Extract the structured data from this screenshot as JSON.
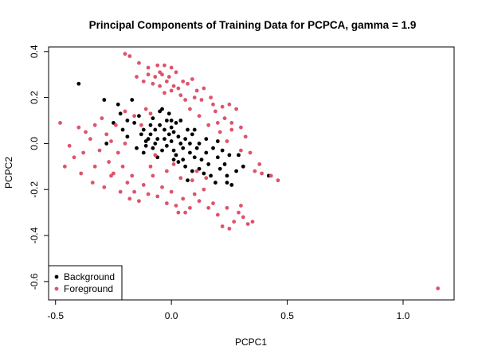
{
  "chart_data": {
    "type": "scatter",
    "title": "Principal Components of Training Data for PCPCA, gamma = 1.9",
    "xlabel": "PCPC1",
    "ylabel": "PCPC2",
    "xlim": [
      -0.53,
      1.22
    ],
    "ylim": [
      -0.68,
      0.42
    ],
    "xticks": [
      -0.5,
      0.0,
      0.5,
      1.0
    ],
    "xtick_labels": [
      "-0.5",
      "0.0",
      "0.5",
      "1.0"
    ],
    "yticks": [
      -0.6,
      -0.4,
      -0.2,
      0.0,
      0.2,
      0.4
    ],
    "ytick_labels": [
      "-0.6",
      "-0.4",
      "-0.2",
      "0.0",
      "0.2",
      "0.4"
    ],
    "grid": false,
    "legend": {
      "position": "bottom-left"
    },
    "series": [
      {
        "name": "Background",
        "color": "#000000",
        "points": [
          [
            -0.4,
            0.26
          ],
          [
            -0.29,
            0.19
          ],
          [
            -0.23,
            0.17
          ],
          [
            -0.22,
            0.13
          ],
          [
            -0.19,
            0.1
          ],
          [
            -0.17,
            0.19
          ],
          [
            -0.16,
            0.09
          ],
          [
            -0.14,
            0.12
          ],
          [
            -0.13,
            0.04
          ],
          [
            -0.12,
            0.06
          ],
          [
            -0.11,
            0.01
          ],
          [
            -0.11,
            -0.01
          ],
          [
            -0.1,
            0.02
          ],
          [
            -0.09,
            0.08
          ],
          [
            -0.09,
            0.04
          ],
          [
            -0.08,
            0.11
          ],
          [
            -0.08,
            -0.02
          ],
          [
            -0.07,
            0.0
          ],
          [
            -0.07,
            0.06
          ],
          [
            -0.06,
            0.02
          ],
          [
            -0.05,
            0.14
          ],
          [
            -0.05,
            0.08
          ],
          [
            -0.04,
            -0.03
          ],
          [
            -0.03,
            0.02
          ],
          [
            -0.03,
            0.06
          ],
          [
            -0.02,
            0.1
          ],
          [
            -0.02,
            -0.01
          ],
          [
            -0.01,
            0.04
          ],
          [
            -0.01,
            0.13
          ],
          [
            0.0,
            0.07
          ],
          [
            0.0,
            0.01
          ],
          [
            0.01,
            -0.03
          ],
          [
            0.01,
            0.05
          ],
          [
            0.02,
            -0.05
          ],
          [
            0.02,
            0.09
          ],
          [
            0.03,
            0.03
          ],
          [
            0.03,
            -0.08
          ],
          [
            0.04,
            0.1
          ],
          [
            0.04,
            0.0
          ],
          [
            0.05,
            -0.02
          ],
          [
            0.05,
            -0.07
          ],
          [
            0.06,
            0.02
          ],
          [
            0.06,
            -0.1
          ],
          [
            0.07,
            0.06
          ],
          [
            0.08,
            -0.04
          ],
          [
            0.09,
            0.04
          ],
          [
            0.09,
            -0.12
          ],
          [
            0.1,
            0.06
          ],
          [
            0.1,
            -0.06
          ],
          [
            0.11,
            -0.02
          ],
          [
            0.12,
            -0.11
          ],
          [
            0.13,
            -0.07
          ],
          [
            0.14,
            -0.13
          ],
          [
            0.15,
            -0.04
          ],
          [
            0.16,
            -0.09
          ],
          [
            0.17,
            -0.14
          ],
          [
            0.18,
            -0.02
          ],
          [
            0.19,
            -0.17
          ],
          [
            0.2,
            -0.06
          ],
          [
            0.21,
            -0.11
          ],
          [
            0.22,
            -0.03
          ],
          [
            0.23,
            -0.09
          ],
          [
            0.24,
            -0.14
          ],
          [
            0.25,
            -0.05
          ],
          [
            -0.28,
            0.0
          ],
          [
            -0.25,
            0.09
          ],
          [
            -0.21,
            0.06
          ],
          [
            -0.15,
            -0.02
          ],
          [
            -0.12,
            -0.04
          ],
          [
            -0.06,
            -0.06
          ],
          [
            -0.04,
            0.15
          ],
          [
            0.01,
            -0.07
          ],
          [
            0.07,
            -0.16
          ],
          [
            0.12,
            0.0
          ],
          [
            0.26,
            -0.18
          ],
          [
            0.29,
            -0.05
          ],
          [
            0.31,
            -0.1
          ],
          [
            0.42,
            -0.14
          ],
          [
            0.0,
            0.1
          ],
          [
            -0.19,
            0.03
          ],
          [
            0.15,
            0.02
          ],
          [
            0.2,
            0.01
          ],
          [
            0.28,
            -0.12
          ],
          [
            0.24,
            -0.17
          ],
          [
            0.08,
            0.0
          ]
        ]
      },
      {
        "name": "Foreground",
        "color": "#DF536B",
        "points": [
          [
            -0.2,
            0.39
          ],
          [
            -0.18,
            0.38
          ],
          [
            -0.14,
            0.35
          ],
          [
            -0.1,
            0.33
          ],
          [
            -0.06,
            0.34
          ],
          [
            -0.04,
            0.3
          ],
          [
            -0.03,
            0.34
          ],
          [
            -0.01,
            0.29
          ],
          [
            0.0,
            0.33
          ],
          [
            0.02,
            0.31
          ],
          [
            -0.15,
            0.29
          ],
          [
            -0.12,
            0.27
          ],
          [
            -0.08,
            0.26
          ],
          [
            -0.05,
            0.25
          ],
          [
            -0.03,
            0.22
          ],
          [
            0.0,
            0.23
          ],
          [
            0.03,
            0.24
          ],
          [
            0.05,
            0.27
          ],
          [
            0.07,
            0.26
          ],
          [
            0.09,
            0.28
          ],
          [
            0.04,
            0.21
          ],
          [
            0.06,
            0.19
          ],
          [
            0.1,
            0.2
          ],
          [
            0.13,
            0.19
          ],
          [
            0.18,
            0.17
          ],
          [
            0.19,
            0.14
          ],
          [
            0.23,
            0.11
          ],
          [
            0.26,
            0.09
          ],
          [
            0.3,
            0.07
          ],
          [
            0.32,
            0.03
          ],
          [
            0.26,
            0.06
          ],
          [
            0.21,
            0.05
          ],
          [
            0.24,
            0.01
          ],
          [
            0.3,
            -0.03
          ],
          [
            0.34,
            -0.04
          ],
          [
            0.38,
            -0.09
          ],
          [
            0.39,
            -0.13
          ],
          [
            0.43,
            -0.14
          ],
          [
            0.46,
            -0.16
          ],
          [
            0.36,
            -0.12
          ],
          [
            -0.48,
            0.09
          ],
          [
            -0.4,
            0.07
          ],
          [
            -0.37,
            0.05
          ],
          [
            -0.35,
            0.02
          ],
          [
            -0.38,
            -0.04
          ],
          [
            -0.42,
            -0.06
          ],
          [
            -0.39,
            -0.13
          ],
          [
            -0.33,
            -0.1
          ],
          [
            -0.31,
            -0.03
          ],
          [
            -0.28,
            0.04
          ],
          [
            -0.27,
            -0.08
          ],
          [
            -0.25,
            -0.13
          ],
          [
            -0.23,
            -0.04
          ],
          [
            -0.21,
            -0.1
          ],
          [
            -0.19,
            -0.17
          ],
          [
            -0.17,
            -0.14
          ],
          [
            -0.16,
            -0.21
          ],
          [
            -0.14,
            -0.25
          ],
          [
            -0.12,
            -0.18
          ],
          [
            -0.1,
            -0.22
          ],
          [
            -0.08,
            -0.14
          ],
          [
            -0.06,
            -0.23
          ],
          [
            -0.04,
            -0.19
          ],
          [
            -0.02,
            -0.26
          ],
          [
            0.0,
            -0.21
          ],
          [
            0.02,
            -0.27
          ],
          [
            0.03,
            -0.3
          ],
          [
            0.05,
            -0.24
          ],
          [
            0.06,
            -0.3
          ],
          [
            0.08,
            -0.28
          ],
          [
            0.1,
            -0.22
          ],
          [
            0.12,
            -0.25
          ],
          [
            0.14,
            -0.2
          ],
          [
            0.16,
            -0.28
          ],
          [
            0.18,
            -0.26
          ],
          [
            0.2,
            -0.31
          ],
          [
            0.22,
            -0.36
          ],
          [
            0.25,
            -0.37
          ],
          [
            0.27,
            -0.34
          ],
          [
            0.29,
            -0.3
          ],
          [
            0.31,
            -0.32
          ],
          [
            0.33,
            -0.35
          ],
          [
            0.35,
            -0.34
          ],
          [
            0.3,
            -0.27
          ],
          [
            0.24,
            -0.28
          ],
          [
            -0.44,
            -0.01
          ],
          [
            -0.46,
            -0.1
          ],
          [
            -0.34,
            -0.17
          ],
          [
            -0.29,
            -0.19
          ],
          [
            -0.26,
            -0.14
          ],
          [
            -0.22,
            -0.21
          ],
          [
            -0.18,
            -0.24
          ],
          [
            -0.09,
            -0.1
          ],
          [
            -0.07,
            -0.05
          ],
          [
            -0.02,
            -0.12
          ],
          [
            0.01,
            -0.09
          ],
          [
            0.04,
            -0.15
          ],
          [
            0.09,
            -0.16
          ],
          [
            0.11,
            -0.12
          ],
          [
            0.15,
            -0.15
          ],
          [
            -0.13,
            0.08
          ],
          [
            -0.11,
            0.15
          ],
          [
            -0.09,
            0.13
          ],
          [
            -0.16,
            0.12
          ],
          [
            -0.2,
            0.14
          ],
          [
            -0.24,
            0.08
          ],
          [
            -0.3,
            0.11
          ],
          [
            -0.33,
            0.08
          ],
          [
            -0.26,
            0.01
          ],
          [
            -0.2,
            0.0
          ],
          [
            0.08,
            0.15
          ],
          [
            0.12,
            0.12
          ],
          [
            0.16,
            0.08
          ],
          [
            0.2,
            0.09
          ],
          [
            0.28,
            0.15
          ],
          [
            0.22,
            0.16
          ],
          [
            0.25,
            0.17
          ],
          [
            0.17,
            0.2
          ],
          [
            0.14,
            0.24
          ],
          [
            0.11,
            0.23
          ],
          [
            -0.07,
            0.29
          ],
          [
            -0.1,
            0.3
          ],
          [
            -0.02,
            0.27
          ],
          [
            0.01,
            0.25
          ],
          [
            -0.05,
            0.31
          ],
          [
            1.15,
            -0.63
          ]
        ]
      }
    ]
  }
}
